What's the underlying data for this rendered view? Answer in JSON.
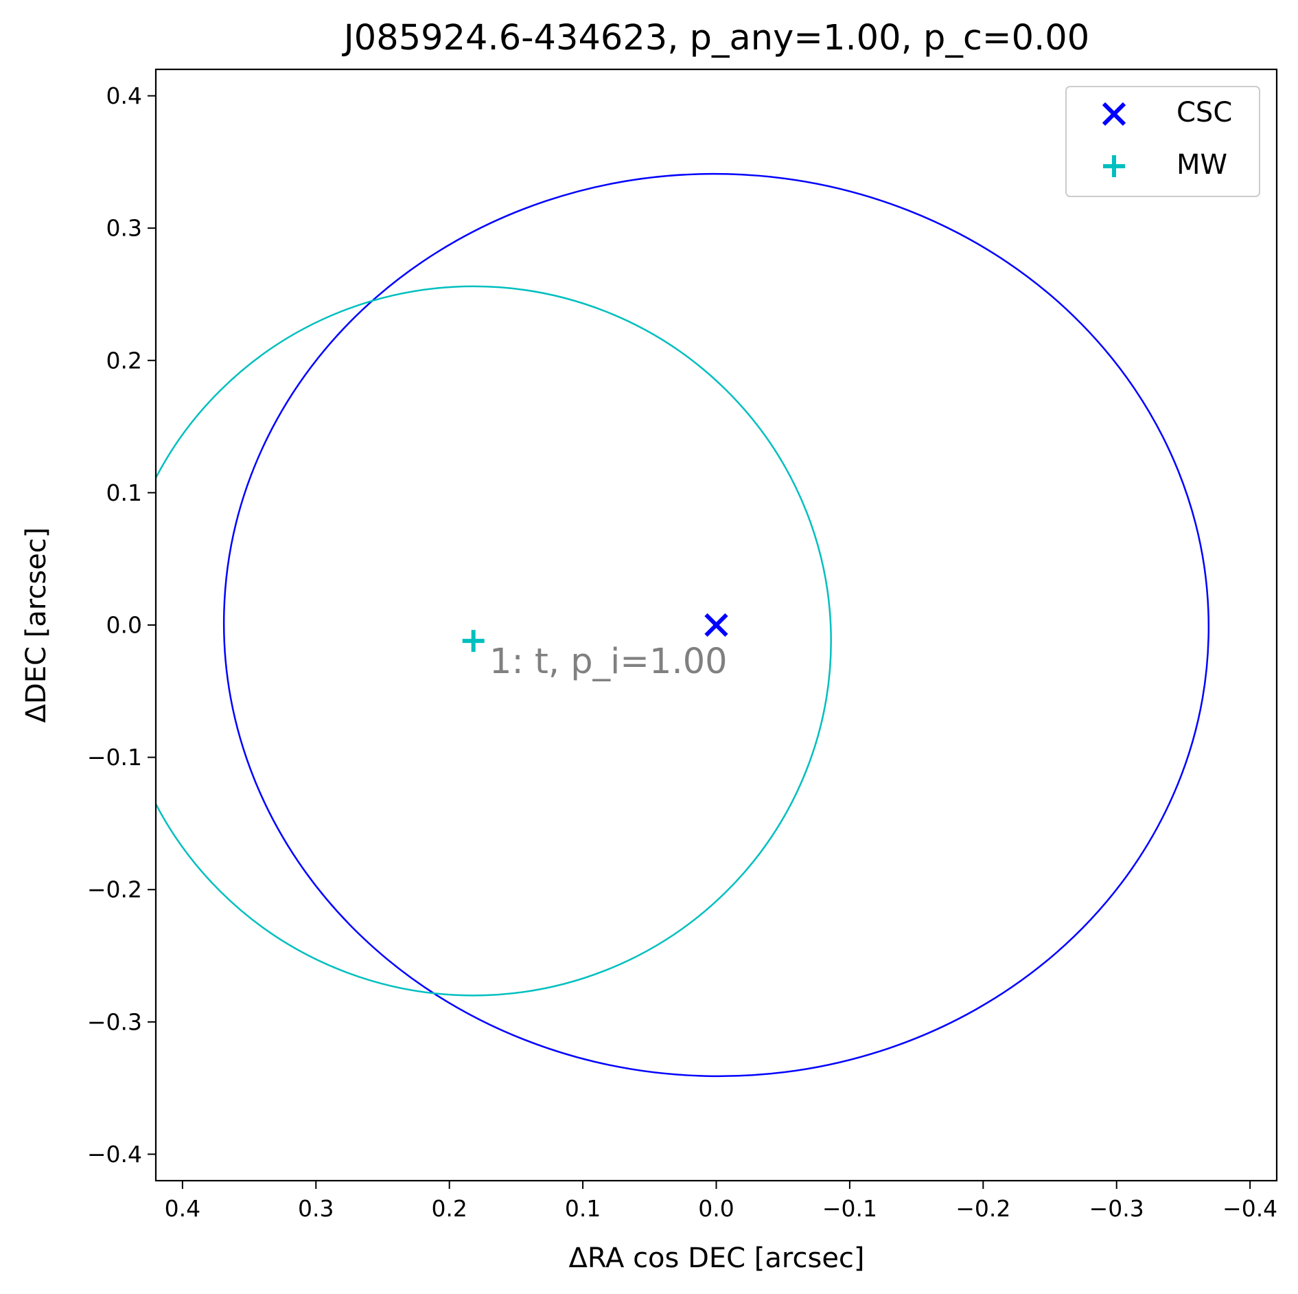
{
  "chart_data": {
    "type": "scatter",
    "title": "J085924.6-434623, p_any=1.00, p_c=0.00",
    "xlabel": "ΔRA cos DEC [arcsec]",
    "ylabel": "ΔDEC [arcsec]",
    "xlim": [
      0.42,
      -0.42
    ],
    "ylim": [
      -0.42,
      0.42
    ],
    "x_inverted": true,
    "grid": false,
    "legend_position": "upper-right",
    "x_ticks": [
      0.4,
      0.3,
      0.2,
      0.1,
      0.0,
      -0.1,
      -0.2,
      -0.3,
      -0.4
    ],
    "x_tick_labels": [
      "0.4",
      "0.3",
      "0.2",
      "0.1",
      "0.0",
      "−0.1",
      "−0.2",
      "−0.3",
      "−0.4"
    ],
    "y_ticks": [
      0.4,
      0.3,
      0.2,
      0.1,
      0.0,
      -0.1,
      -0.2,
      -0.3,
      -0.4
    ],
    "y_tick_labels": [
      "0.4",
      "0.3",
      "0.2",
      "0.1",
      "0.0",
      "−0.1",
      "−0.2",
      "−0.3",
      "−0.4"
    ],
    "series": [
      {
        "name": "CSC",
        "marker": "x",
        "color": "#0000ff",
        "points": [
          {
            "x": 0.0,
            "y": 0.0
          }
        ],
        "ellipses": [
          {
            "cx": 0.0,
            "cy": 0.0,
            "semi_major": 0.369,
            "semi_minor": 0.341,
            "angle_deg": 1.5
          }
        ]
      },
      {
        "name": "MW",
        "marker": "+",
        "color": "#00bfbf",
        "points": [
          {
            "x": 0.182,
            "y": -0.012
          }
        ],
        "ellipses": [
          {
            "cx": 0.182,
            "cy": -0.012,
            "semi_major": 0.268,
            "semi_minor": 0.268,
            "angle_deg": 0
          }
        ]
      }
    ],
    "annotations": [
      {
        "text": "1: t, p_i=1.00",
        "x": 0.17,
        "y": -0.027,
        "color": "#808080"
      }
    ]
  }
}
